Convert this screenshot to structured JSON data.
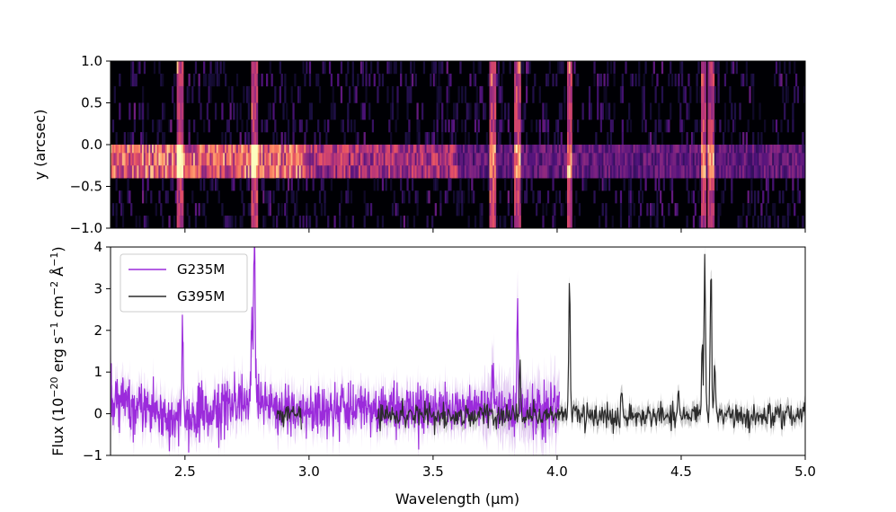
{
  "chart_data": [
    {
      "type": "heatmap",
      "title": "",
      "xlabel": "",
      "ylabel": "y (arcsec)",
      "xlim": [
        2.2,
        5.0
      ],
      "ylim": [
        -1.0,
        1.0
      ],
      "yticks": [
        1.0,
        0.5,
        0.0,
        -0.5,
        -1.0
      ],
      "ytick_labels": [
        "1.0",
        "0.5",
        "0.0",
        "−0.5",
        "−1.0"
      ],
      "xticks": [
        2.5,
        3.0,
        3.5,
        4.0,
        4.5,
        5.0
      ],
      "colormap": "magma",
      "bright_rows_arcsec": [
        -0.4,
        -0.1
      ],
      "emission_line_columns_um": [
        2.48,
        2.78,
        3.74,
        3.84,
        4.05,
        4.59,
        4.62
      ]
    },
    {
      "type": "line",
      "title": "",
      "xlabel": "Wavelength (µm)",
      "ylabel": "Flux (10⁻²⁰ erg s⁻¹ cm⁻² Å⁻¹)",
      "ylabel_parts": {
        "pre": "Flux (10",
        "exp1": "−20",
        "mid1": " erg s",
        "exp2": "−1",
        "mid2": " cm",
        "exp3": "−2",
        "mid3": " Å",
        "exp4": "−1",
        "post": ")"
      },
      "xlim": [
        2.2,
        5.0
      ],
      "ylim": [
        -1,
        4
      ],
      "xticks": [
        2.5,
        3.0,
        3.5,
        4.0,
        4.5,
        5.0
      ],
      "xtick_labels": [
        "2.5",
        "3.0",
        "3.5",
        "4.0",
        "4.5",
        "5.0"
      ],
      "yticks": [
        -1,
        0,
        1,
        2,
        3,
        4
      ],
      "ytick_labels": [
        "−1",
        "0",
        "1",
        "2",
        "3",
        "4"
      ],
      "legend_position": "top-left",
      "series": [
        {
          "name": "G235M",
          "color": "#9b2bdb",
          "error_color": "#e3ccf2",
          "x_range": [
            2.2,
            4.01
          ],
          "baseline": 0.1,
          "noise": 0.3,
          "peaks": [
            {
              "x": 2.49,
              "y": 2.4
            },
            {
              "x": 2.78,
              "y": 4.0
            },
            {
              "x": 2.77,
              "y": 2.2
            },
            {
              "x": 3.84,
              "y": 2.4
            },
            {
              "x": 3.74,
              "y": 1.0
            }
          ]
        },
        {
          "name": "G395M",
          "color": "#2b2b2b",
          "error_color": "#c8c8c8",
          "x_range": [
            2.87,
            5.0
          ],
          "baseline": -0.05,
          "noise": 0.15,
          "gap": [
            2.97,
            3.27
          ],
          "peaks": [
            {
              "x": 3.85,
              "y": 1.2
            },
            {
              "x": 4.05,
              "y": 3.4
            },
            {
              "x": 4.26,
              "y": 0.6
            },
            {
              "x": 4.49,
              "y": 0.7
            },
            {
              "x": 4.585,
              "y": 1.8
            },
            {
              "x": 4.595,
              "y": 4.0
            },
            {
              "x": 4.62,
              "y": 4.0
            },
            {
              "x": 4.635,
              "y": 1.3
            }
          ]
        }
      ]
    }
  ]
}
